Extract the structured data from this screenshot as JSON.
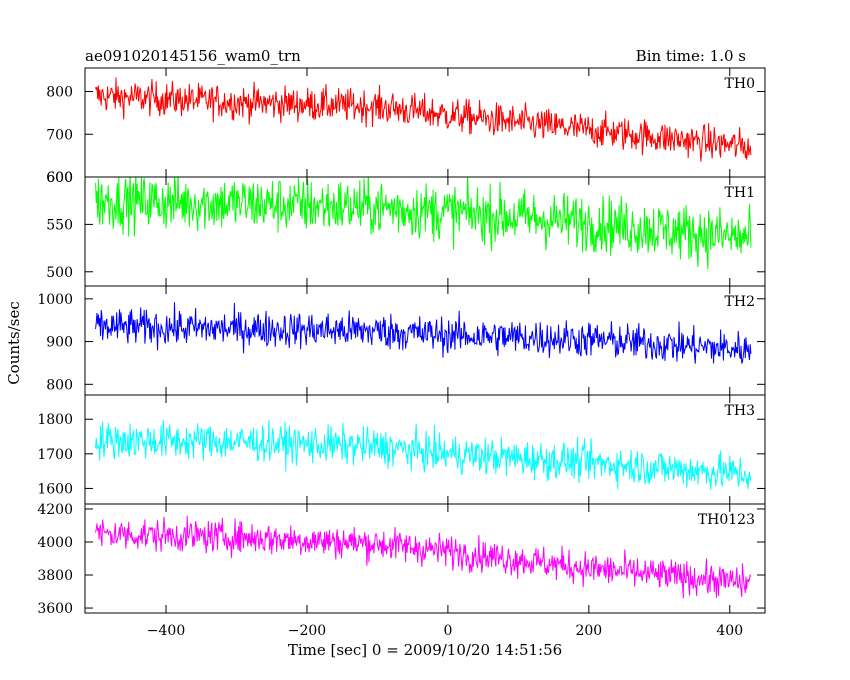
{
  "chart_data": {
    "type": "line",
    "title": "ae091020145156_wam0_trn",
    "subtitle": "Bin time: 1.0 s",
    "xlabel": "Time [sec] 0 = 2009/10/20 14:51:56",
    "ylabel": "Counts/sec",
    "xlim": [
      -515,
      450
    ],
    "x_range": [
      -500,
      430
    ],
    "xticks": [
      -400,
      -200,
      0,
      200,
      400
    ],
    "grid": false,
    "panels": [
      {
        "name": "TH0",
        "color": "#ff0000",
        "ylim": [
          600,
          855
        ],
        "yticks": [
          600,
          700,
          800
        ],
        "trend": [
          [
            -500,
            790
          ],
          [
            -300,
            775
          ],
          [
            -100,
            765
          ],
          [
            0,
            745
          ],
          [
            200,
            710
          ],
          [
            430,
            670
          ]
        ],
        "noise": 28
      },
      {
        "name": "TH1",
        "color": "#00ff00",
        "ylim": [
          485,
          600
        ],
        "yticks": [
          500,
          550,
          600
        ],
        "trend": [
          [
            -500,
            575
          ],
          [
            -300,
            572
          ],
          [
            -100,
            568
          ],
          [
            0,
            563
          ],
          [
            200,
            552
          ],
          [
            430,
            535
          ]
        ],
        "noise": 21
      },
      {
        "name": "TH2",
        "color": "#0000ff",
        "ylim": [
          775,
          1030
        ],
        "yticks": [
          800,
          900,
          1000
        ],
        "trend": [
          [
            -500,
            935
          ],
          [
            -300,
            930
          ],
          [
            -100,
            925
          ],
          [
            0,
            915
          ],
          [
            200,
            905
          ],
          [
            430,
            880
          ]
        ],
        "noise": 30
      },
      {
        "name": "TH3",
        "color": "#00ffff",
        "ylim": [
          1555,
          1870
        ],
        "yticks": [
          1600,
          1700,
          1800
        ],
        "trend": [
          [
            -500,
            1740
          ],
          [
            -300,
            1735
          ],
          [
            -100,
            1720
          ],
          [
            0,
            1700
          ],
          [
            200,
            1675
          ],
          [
            430,
            1640
          ]
        ],
        "noise": 38
      },
      {
        "name": "TH0123",
        "color": "#ff00ff",
        "ylim": [
          3570,
          4230
        ],
        "yticks": [
          3600,
          3800,
          4000,
          4200
        ],
        "trend": [
          [
            -500,
            4050
          ],
          [
            -300,
            4030
          ],
          [
            -100,
            3990
          ],
          [
            0,
            3945
          ],
          [
            200,
            3840
          ],
          [
            430,
            3750
          ]
        ],
        "noise": 70
      }
    ]
  }
}
